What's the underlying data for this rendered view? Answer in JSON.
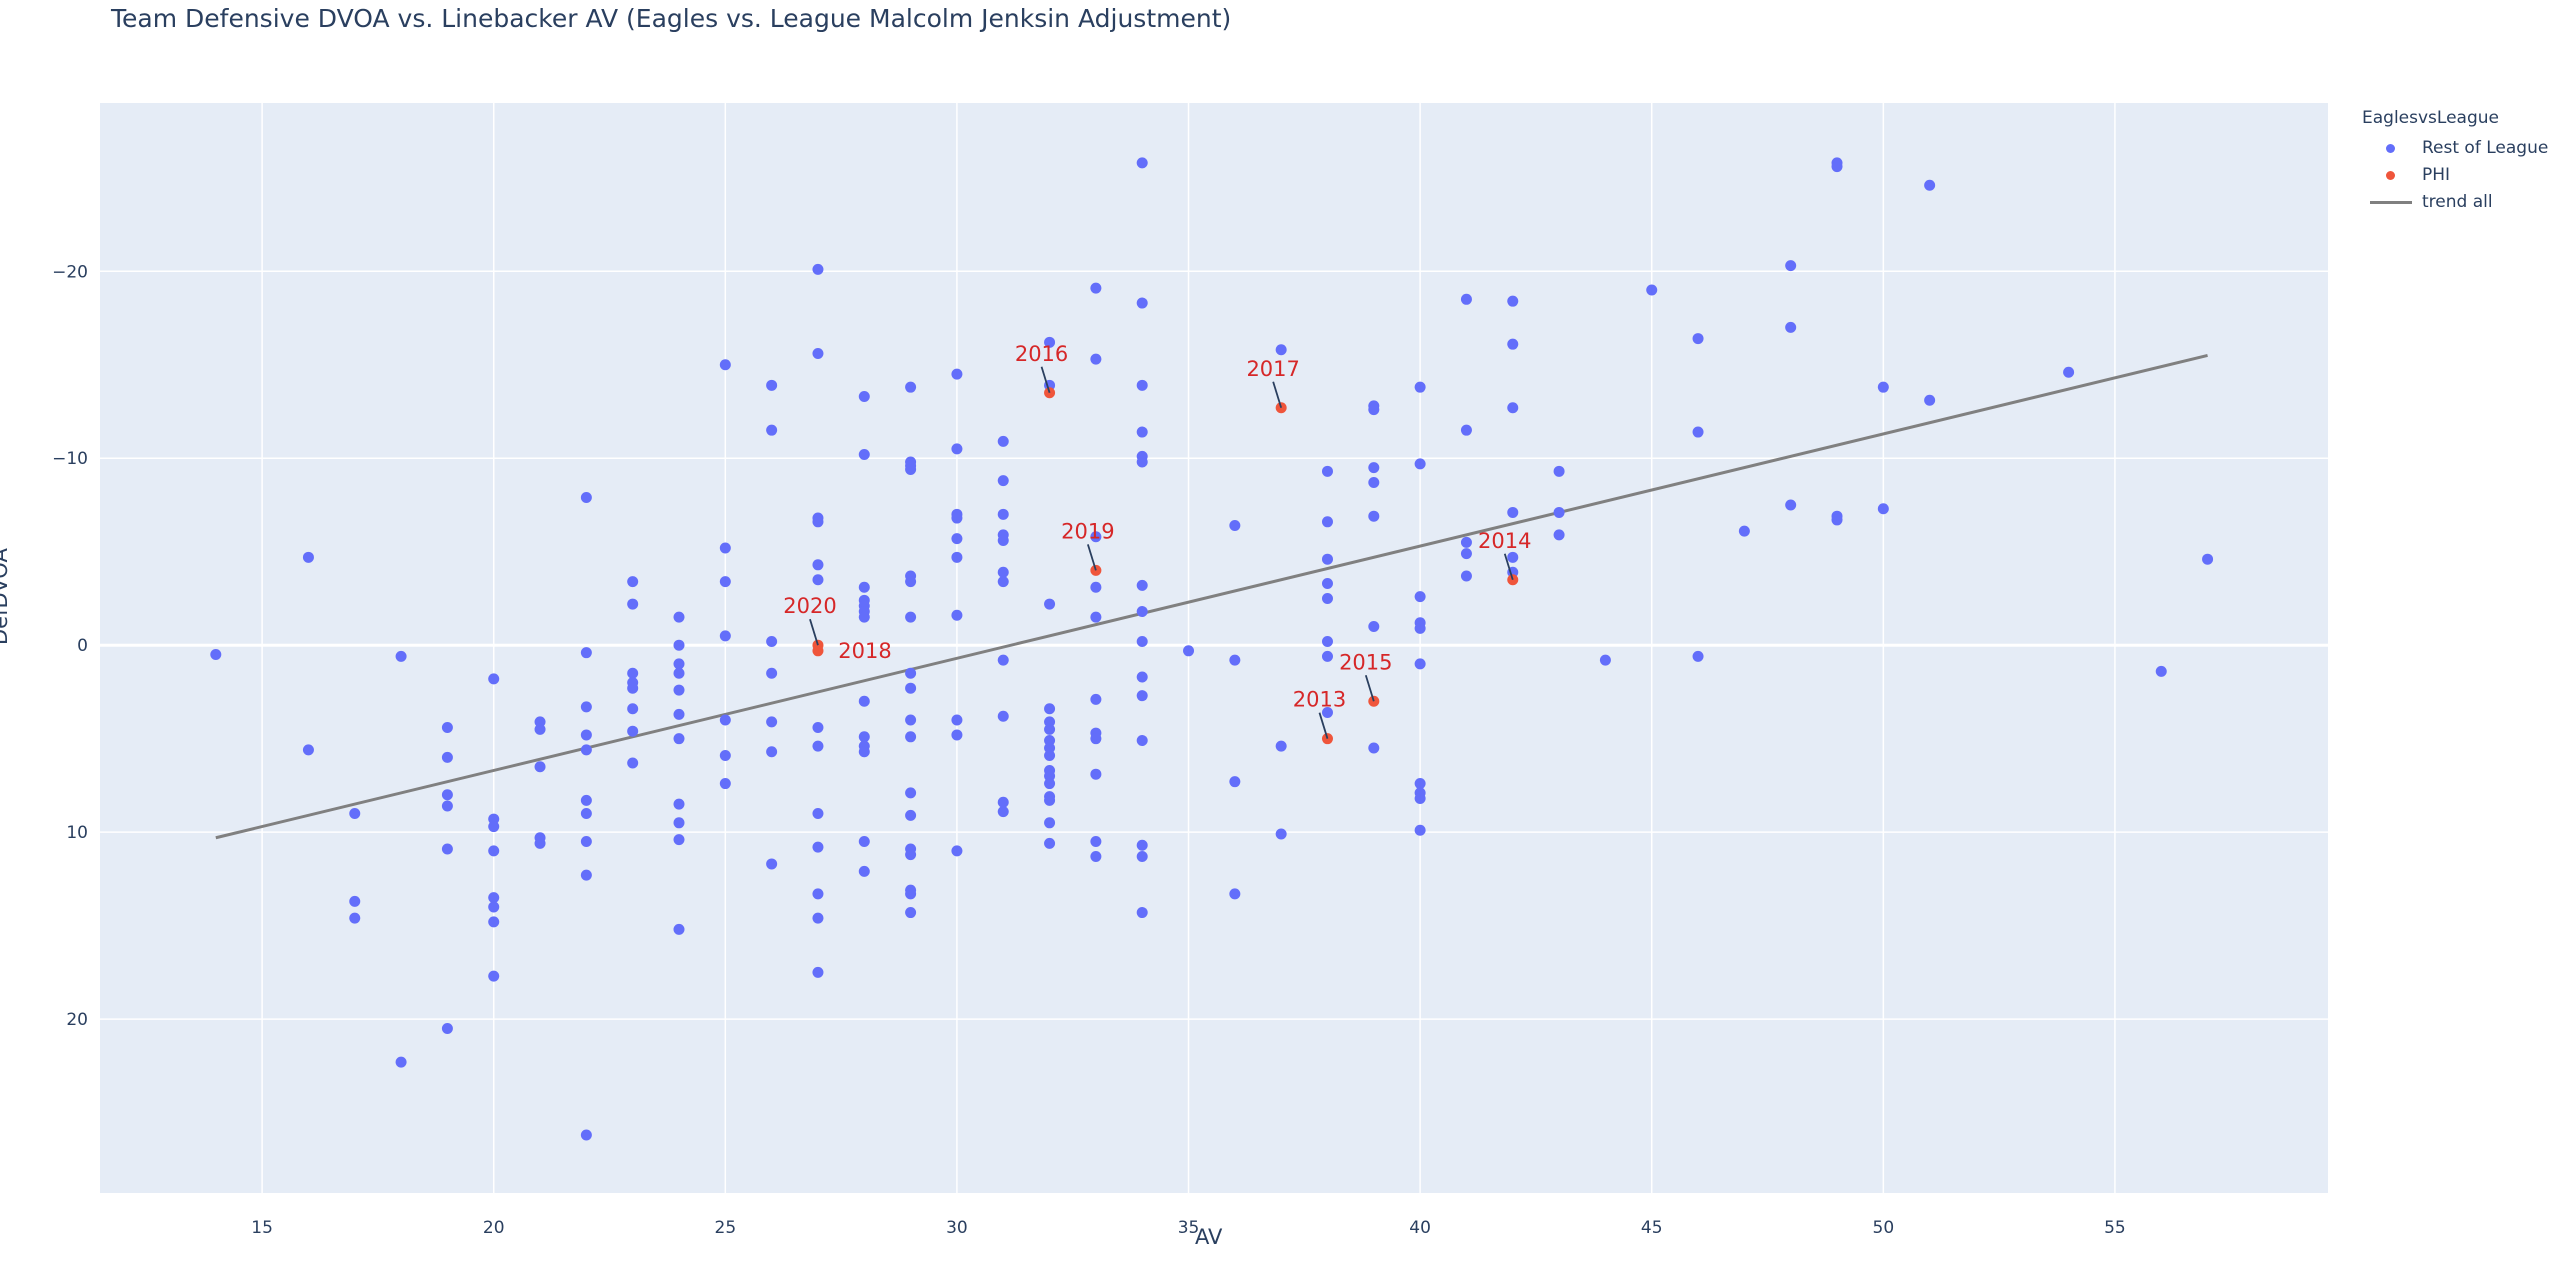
{
  "title": "Team Defensive DVOA vs. Linebacker AV (Eagles vs. League Malcolm Jenksin Adjustment)",
  "legend": {
    "title": "EaglesvsLeague",
    "items": [
      {
        "label": "Rest of League",
        "color": "#636efa",
        "kind": "marker"
      },
      {
        "label": "PHI",
        "color": "#ef553b",
        "kind": "marker"
      },
      {
        "label": "trend all",
        "color": "#808080",
        "kind": "line"
      }
    ]
  },
  "axes": {
    "xlabel": "AV",
    "ylabel": "DefDVOA",
    "xticks": [
      "15",
      "20",
      "25",
      "30",
      "35",
      "40",
      "45",
      "50",
      "55"
    ],
    "yticks": [
      "−20",
      "−10",
      "0",
      "10",
      "20"
    ]
  },
  "colors": {
    "plot_bg": "#e5ecf6",
    "grid": "#ffffff",
    "league": "#636efa",
    "phi": "#ef553b",
    "trend": "#808080",
    "annotation": "#d62728"
  },
  "chart_data": {
    "type": "scatter",
    "title": "Team Defensive DVOA vs. Linebacker AV (Eagles vs. League Malcolm Jenksin Adjustment)",
    "xlabel": "AV",
    "ylabel": "DefDVOA",
    "xlim": [
      11.5,
      59.6
    ],
    "ylim": [
      29.3,
      -29.0
    ],
    "y_reversed": true,
    "grid": true,
    "legend_position": "right",
    "legend_title": "EaglesvsLeague",
    "series": [
      {
        "name": "Rest of League",
        "color": "#636efa",
        "points": [
          [
            14,
            0.5
          ],
          [
            16,
            -4.7
          ],
          [
            16,
            5.6
          ],
          [
            17,
            9.0
          ],
          [
            17,
            13.7
          ],
          [
            17,
            14.6
          ],
          [
            18,
            0.6
          ],
          [
            18,
            22.3
          ],
          [
            19,
            4.4
          ],
          [
            19,
            6.0
          ],
          [
            19,
            8.0
          ],
          [
            19,
            8.6
          ],
          [
            19,
            10.9
          ],
          [
            19,
            20.5
          ],
          [
            20,
            1.8
          ],
          [
            20,
            9.3
          ],
          [
            20,
            9.7
          ],
          [
            20,
            11.0
          ],
          [
            20,
            13.5
          ],
          [
            20,
            14.0
          ],
          [
            20,
            14.8
          ],
          [
            20,
            17.7
          ],
          [
            21,
            4.1
          ],
          [
            21,
            4.5
          ],
          [
            21,
            6.5
          ],
          [
            21,
            10.3
          ],
          [
            21,
            10.6
          ],
          [
            22,
            -7.9
          ],
          [
            22,
            0.4
          ],
          [
            22,
            3.3
          ],
          [
            22,
            4.8
          ],
          [
            22,
            5.6
          ],
          [
            22,
            8.3
          ],
          [
            22,
            9.0
          ],
          [
            22,
            10.5
          ],
          [
            22,
            12.3
          ],
          [
            22,
            26.2
          ],
          [
            23,
            -3.4
          ],
          [
            23,
            -2.2
          ],
          [
            23,
            1.5
          ],
          [
            23,
            2.0
          ],
          [
            23,
            2.3
          ],
          [
            23,
            3.4
          ],
          [
            23,
            4.6
          ],
          [
            23,
            6.3
          ],
          [
            24,
            -1.5
          ],
          [
            24,
            0.0
          ],
          [
            24,
            1.0
          ],
          [
            24,
            1.5
          ],
          [
            24,
            2.4
          ],
          [
            24,
            3.7
          ],
          [
            24,
            5.0
          ],
          [
            24,
            8.5
          ],
          [
            24,
            9.5
          ],
          [
            24,
            10.4
          ],
          [
            24,
            15.2
          ],
          [
            25,
            -15.0
          ],
          [
            25,
            -5.2
          ],
          [
            25,
            -3.4
          ],
          [
            25,
            -0.5
          ],
          [
            25,
            4.0
          ],
          [
            25,
            5.9
          ],
          [
            25,
            7.4
          ],
          [
            26,
            -13.9
          ],
          [
            26,
            -11.5
          ],
          [
            26,
            -0.2
          ],
          [
            26,
            1.5
          ],
          [
            26,
            4.1
          ],
          [
            26,
            5.7
          ],
          [
            26,
            11.7
          ],
          [
            27,
            -20.1
          ],
          [
            27,
            -15.6
          ],
          [
            27,
            -6.8
          ],
          [
            27,
            -6.6
          ],
          [
            27,
            -4.3
          ],
          [
            27,
            -3.5
          ],
          [
            27,
            4.4
          ],
          [
            27,
            5.4
          ],
          [
            27,
            9.0
          ],
          [
            27,
            10.8
          ],
          [
            27,
            13.3
          ],
          [
            27,
            14.6
          ],
          [
            27,
            17.5
          ],
          [
            28,
            -13.3
          ],
          [
            28,
            -10.2
          ],
          [
            28,
            -3.1
          ],
          [
            28,
            -2.4
          ],
          [
            28,
            -2.1
          ],
          [
            28,
            -1.8
          ],
          [
            28,
            -1.5
          ],
          [
            28,
            3.0
          ],
          [
            28,
            4.9
          ],
          [
            28,
            5.4
          ],
          [
            28,
            5.7
          ],
          [
            28,
            10.5
          ],
          [
            28,
            12.1
          ],
          [
            29,
            -13.8
          ],
          [
            29,
            -9.8
          ],
          [
            29,
            -9.6
          ],
          [
            29,
            -9.4
          ],
          [
            29,
            -3.7
          ],
          [
            29,
            -3.4
          ],
          [
            29,
            -1.5
          ],
          [
            29,
            1.5
          ],
          [
            29,
            2.3
          ],
          [
            29,
            4.0
          ],
          [
            29,
            4.9
          ],
          [
            29,
            7.9
          ],
          [
            29,
            9.1
          ],
          [
            29,
            10.9
          ],
          [
            29,
            11.2
          ],
          [
            29,
            13.1
          ],
          [
            29,
            13.3
          ],
          [
            29,
            14.3
          ],
          [
            30,
            -14.5
          ],
          [
            30,
            -10.5
          ],
          [
            30,
            -7.0
          ],
          [
            30,
            -6.8
          ],
          [
            30,
            -5.7
          ],
          [
            30,
            -4.7
          ],
          [
            30,
            -1.6
          ],
          [
            30,
            4.0
          ],
          [
            30,
            4.8
          ],
          [
            30,
            11.0
          ],
          [
            31,
            -10.9
          ],
          [
            31,
            -8.8
          ],
          [
            31,
            -7.0
          ],
          [
            31,
            -5.9
          ],
          [
            31,
            -5.6
          ],
          [
            31,
            -3.9
          ],
          [
            31,
            -3.4
          ],
          [
            31,
            0.8
          ],
          [
            31,
            3.8
          ],
          [
            31,
            8.4
          ],
          [
            31,
            8.9
          ],
          [
            32,
            -16.2
          ],
          [
            32,
            -13.9
          ],
          [
            32,
            -2.2
          ],
          [
            32,
            3.4
          ],
          [
            32,
            4.1
          ],
          [
            32,
            4.5
          ],
          [
            32,
            5.1
          ],
          [
            32,
            5.5
          ],
          [
            32,
            5.9
          ],
          [
            32,
            6.7
          ],
          [
            32,
            7.0
          ],
          [
            32,
            7.4
          ],
          [
            32,
            8.1
          ],
          [
            32,
            8.3
          ],
          [
            32,
            9.5
          ],
          [
            32,
            10.6
          ],
          [
            33,
            -19.1
          ],
          [
            33,
            -15.3
          ],
          [
            33,
            -5.8
          ],
          [
            33,
            -3.1
          ],
          [
            33,
            -1.5
          ],
          [
            33,
            2.9
          ],
          [
            33,
            4.7
          ],
          [
            33,
            5.0
          ],
          [
            33,
            6.9
          ],
          [
            33,
            10.5
          ],
          [
            33,
            11.3
          ],
          [
            34,
            -25.8
          ],
          [
            34,
            -18.3
          ],
          [
            34,
            -13.9
          ],
          [
            34,
            -11.4
          ],
          [
            34,
            -10.1
          ],
          [
            34,
            -9.8
          ],
          [
            34,
            -3.2
          ],
          [
            34,
            -1.8
          ],
          [
            34,
            -0.2
          ],
          [
            34,
            1.7
          ],
          [
            34,
            2.7
          ],
          [
            34,
            5.1
          ],
          [
            34,
            10.7
          ],
          [
            34,
            11.3
          ],
          [
            34,
            14.3
          ],
          [
            35,
            0.3
          ],
          [
            36,
            -6.4
          ],
          [
            36,
            0.8
          ],
          [
            36,
            7.3
          ],
          [
            36,
            13.3
          ],
          [
            37,
            -15.8
          ],
          [
            37,
            5.4
          ],
          [
            37,
            10.1
          ],
          [
            38,
            -9.3
          ],
          [
            38,
            -6.6
          ],
          [
            38,
            -4.6
          ],
          [
            38,
            -3.3
          ],
          [
            38,
            -2.5
          ],
          [
            38,
            -0.2
          ],
          [
            38,
            0.6
          ],
          [
            38,
            3.6
          ],
          [
            39,
            -12.8
          ],
          [
            39,
            -12.6
          ],
          [
            39,
            -9.5
          ],
          [
            39,
            -8.7
          ],
          [
            39,
            -6.9
          ],
          [
            39,
            -1.0
          ],
          [
            39,
            5.5
          ],
          [
            40,
            -13.8
          ],
          [
            40,
            -9.7
          ],
          [
            40,
            -2.6
          ],
          [
            40,
            -1.2
          ],
          [
            40,
            -0.9
          ],
          [
            40,
            1.0
          ],
          [
            40,
            7.4
          ],
          [
            40,
            7.9
          ],
          [
            40,
            8.2
          ],
          [
            40,
            9.9
          ],
          [
            41,
            -18.5
          ],
          [
            41,
            -11.5
          ],
          [
            41,
            -5.5
          ],
          [
            41,
            -4.9
          ],
          [
            41,
            -3.7
          ],
          [
            42,
            -18.4
          ],
          [
            42,
            -16.1
          ],
          [
            42,
            -12.7
          ],
          [
            42,
            -7.1
          ],
          [
            42,
            -4.7
          ],
          [
            42,
            -3.9
          ],
          [
            43,
            -9.3
          ],
          [
            43,
            -7.1
          ],
          [
            43,
            -5.9
          ],
          [
            44,
            0.8
          ],
          [
            45,
            -19.0
          ],
          [
            46,
            -16.4
          ],
          [
            46,
            -11.4
          ],
          [
            46,
            0.6
          ],
          [
            47,
            -6.1
          ],
          [
            48,
            -20.3
          ],
          [
            48,
            -17.0
          ],
          [
            48,
            -7.5
          ],
          [
            49,
            -25.8
          ],
          [
            49,
            -25.6
          ],
          [
            49,
            -6.9
          ],
          [
            49,
            -6.7
          ],
          [
            50,
            -13.8
          ],
          [
            50,
            -7.3
          ],
          [
            51,
            -24.6
          ],
          [
            51,
            -13.1
          ],
          [
            54,
            -14.6
          ],
          [
            56,
            1.4
          ],
          [
            57,
            -4.6
          ]
        ]
      },
      {
        "name": "PHI",
        "color": "#ef553b",
        "points": [
          {
            "x": 32,
            "y": -13.5,
            "label": "2016"
          },
          {
            "x": 37,
            "y": -12.7,
            "label": "2017"
          },
          {
            "x": 33,
            "y": -4.0,
            "label": "2019"
          },
          {
            "x": 42,
            "y": -3.5,
            "label": "2014"
          },
          {
            "x": 27,
            "y": 0.0,
            "label": "2020"
          },
          {
            "x": 27,
            "y": 0.3,
            "label": "2018"
          },
          {
            "x": 39,
            "y": 3.0,
            "label": "2015"
          },
          {
            "x": 38,
            "y": 5.0,
            "label": "2013"
          }
        ]
      },
      {
        "name": "trend all",
        "color": "#808080",
        "type": "line",
        "points": [
          [
            14,
            10.3
          ],
          [
            57,
            -15.5
          ]
        ]
      }
    ],
    "annotations": [
      {
        "text": "2016",
        "x": 32,
        "y": -13.5,
        "ax": -8,
        "ay": -26
      },
      {
        "text": "2017",
        "x": 37,
        "y": -12.7,
        "ax": -8,
        "ay": -26
      },
      {
        "text": "2019",
        "x": 33,
        "y": -4.0,
        "ax": -8,
        "ay": -26
      },
      {
        "text": "2014",
        "x": 42,
        "y": -3.5,
        "ax": -8,
        "ay": -26
      },
      {
        "text": "2020",
        "x": 27,
        "y": 0.0,
        "ax": -8,
        "ay": -26
      },
      {
        "text": "2018",
        "x": 27,
        "y": 0.3,
        "ax": 47,
        "ay": 0,
        "noarrow": true
      },
      {
        "text": "2015",
        "x": 39,
        "y": 3.0,
        "ax": -8,
        "ay": -26
      },
      {
        "text": "2013",
        "x": 38,
        "y": 5.0,
        "ax": -8,
        "ay": -26
      }
    ]
  }
}
